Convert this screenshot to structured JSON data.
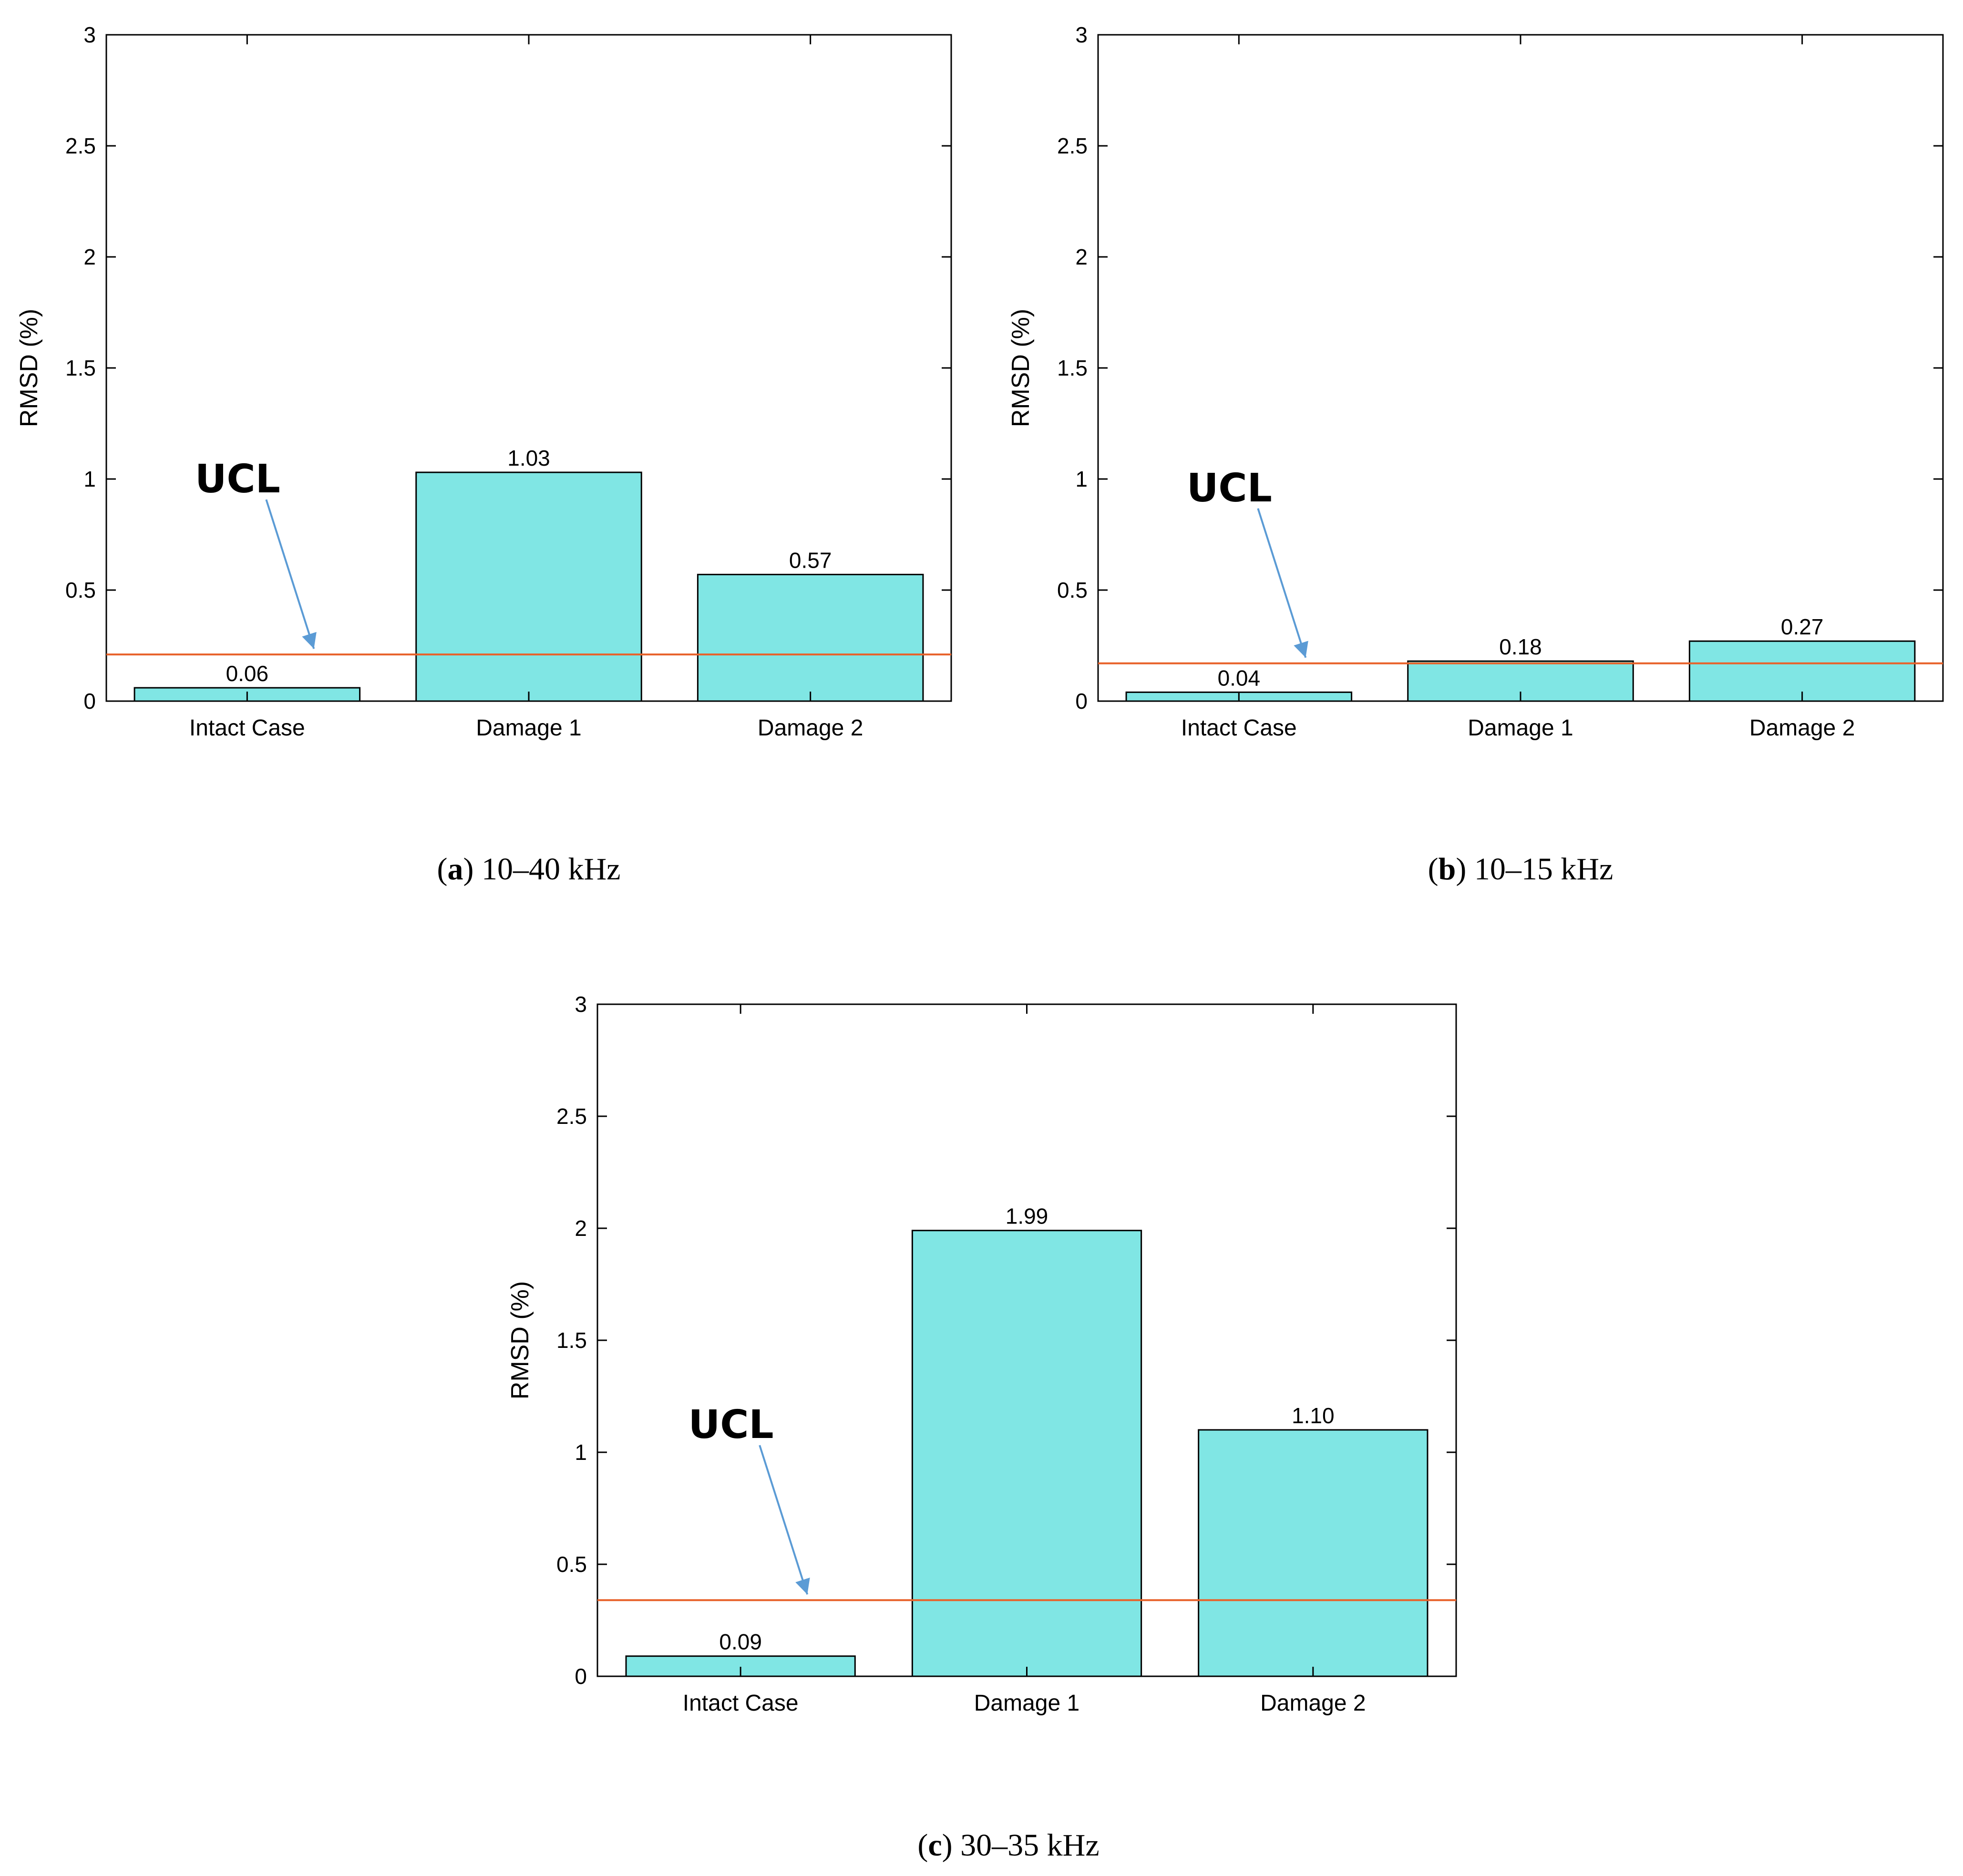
{
  "chart_data": [
    {
      "type": "bar",
      "panel_label": "a",
      "caption_text": "10–40 kHz",
      "categories": [
        "Intact Case",
        "Damage 1",
        "Damage 2"
      ],
      "values": [
        0.06,
        1.03,
        0.57
      ],
      "value_labels": [
        "0.06",
        "1.03",
        "0.57"
      ],
      "ylabel": "RMSD (%)",
      "xlabel": "",
      "ylim": [
        0,
        3
      ],
      "yticks": [
        0,
        0.5,
        1,
        1.5,
        2,
        2.5,
        3
      ],
      "ytick_labels": [
        "0",
        "0.5",
        "1",
        "1.5",
        "2",
        "2.5",
        "3"
      ],
      "threshold": {
        "label": "UCL",
        "value": 0.21,
        "color": "#e8622a"
      },
      "bar_color": "#80e6e4",
      "arrow_color": "#5b9bd5",
      "grid": false
    },
    {
      "type": "bar",
      "panel_label": "b",
      "caption_text": "10–15 kHz",
      "categories": [
        "Intact Case",
        "Damage 1",
        "Damage 2"
      ],
      "values": [
        0.04,
        0.18,
        0.27
      ],
      "value_labels": [
        "0.04",
        "0.18",
        "0.27"
      ],
      "ylabel": "RMSD (%)",
      "xlabel": "",
      "ylim": [
        0,
        3
      ],
      "yticks": [
        0,
        0.5,
        1,
        1.5,
        2,
        2.5,
        3
      ],
      "ytick_labels": [
        "0",
        "0.5",
        "1",
        "1.5",
        "2",
        "2.5",
        "3"
      ],
      "threshold": {
        "label": "UCL",
        "value": 0.17,
        "color": "#e8622a"
      },
      "bar_color": "#80e6e4",
      "arrow_color": "#5b9bd5",
      "grid": false
    },
    {
      "type": "bar",
      "panel_label": "c",
      "caption_text": "30–35 kHz",
      "categories": [
        "Intact Case",
        "Damage 1",
        "Damage 2"
      ],
      "values": [
        0.09,
        1.99,
        1.1
      ],
      "value_labels": [
        "0.09",
        "1.99",
        "1.10"
      ],
      "ylabel": "RMSD (%)",
      "xlabel": "",
      "ylim": [
        0,
        3
      ],
      "yticks": [
        0,
        0.5,
        1,
        1.5,
        2,
        2.5,
        3
      ],
      "ytick_labels": [
        "0",
        "0.5",
        "1",
        "1.5",
        "2",
        "2.5",
        "3"
      ],
      "threshold": {
        "label": "UCL",
        "value": 0.34,
        "color": "#e8622a"
      },
      "bar_color": "#80e6e4",
      "arrow_color": "#5b9bd5",
      "grid": false
    }
  ]
}
